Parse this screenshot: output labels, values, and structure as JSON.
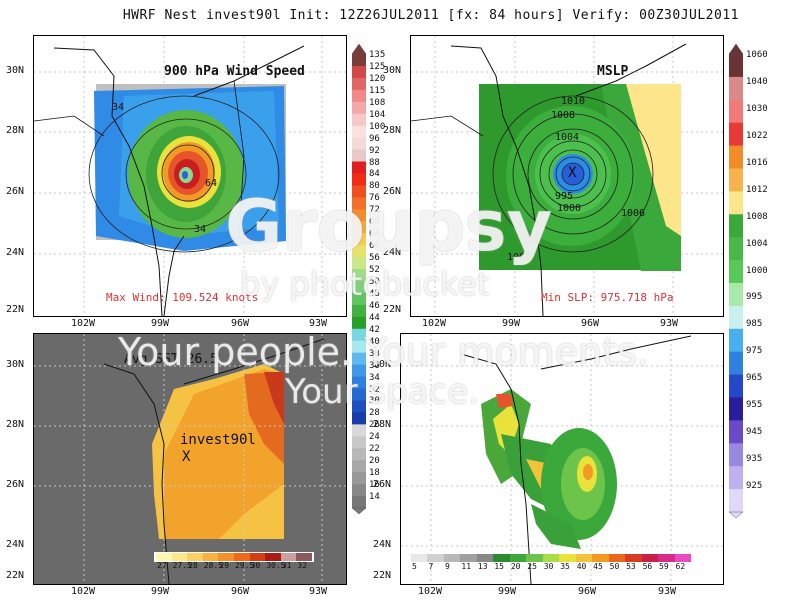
{
  "header": {
    "title": "HWRF Nest invest90l Init: 12Z26JUL2011 [fx: 84 hours] Verify: 00Z30JUL2011"
  },
  "axes": {
    "lon_labels": [
      "102W",
      "99W",
      "96W",
      "93W"
    ],
    "lat_labels": [
      "30N",
      "28N",
      "26N",
      "24N",
      "22N"
    ]
  },
  "panels": {
    "wind": {
      "title": "900 hPa Wind Speed",
      "note": "Max Wind: 109.524 knots",
      "contour_labels": [
        "34",
        "64",
        "34"
      ]
    },
    "mslp": {
      "title": "MSLP",
      "note": "Min SLP: 975.718 hPa",
      "center_mark": "X",
      "contour_labels": [
        "1010",
        "1008",
        "1004",
        "995",
        "1000",
        "1006",
        "1008"
      ]
    },
    "sst": {
      "title": "Avg SST 26.5",
      "storm_label": "invest90l",
      "storm_mark": "X"
    },
    "precip": {}
  },
  "colorbars": {
    "wind": [
      "135",
      "125",
      "120",
      "115",
      "108",
      "104",
      "100",
      "96",
      "92",
      "88",
      "84",
      "80",
      "76",
      "72",
      "68",
      "64",
      "60",
      "56",
      "52",
      "50",
      "48",
      "46",
      "44",
      "42",
      "40",
      "38",
      "36",
      "34",
      "32",
      "30",
      "28",
      "26",
      "24",
      "22",
      "20",
      "18",
      "16",
      "14"
    ],
    "mslp": [
      "1060",
      "1040",
      "1030",
      "1022",
      "1016",
      "1012",
      "1008",
      "1004",
      "1000",
      "995",
      "985",
      "975",
      "965",
      "955",
      "945",
      "935",
      "925"
    ],
    "sst": [
      "27",
      "27.5",
      "28",
      "28.5",
      "29",
      "29.5",
      "30",
      "30.5",
      "31",
      "32"
    ],
    "precip": [
      "5",
      "7",
      "9",
      "11",
      "13",
      "15",
      "20",
      "25",
      "30",
      "35",
      "40",
      "45",
      "50",
      "53",
      "56",
      "59",
      "62"
    ]
  },
  "watermark": {
    "line1": "Groupsy",
    "line2": "by photobucket",
    "line3": "Your people. Your moments.",
    "line4": "Your space."
  }
}
